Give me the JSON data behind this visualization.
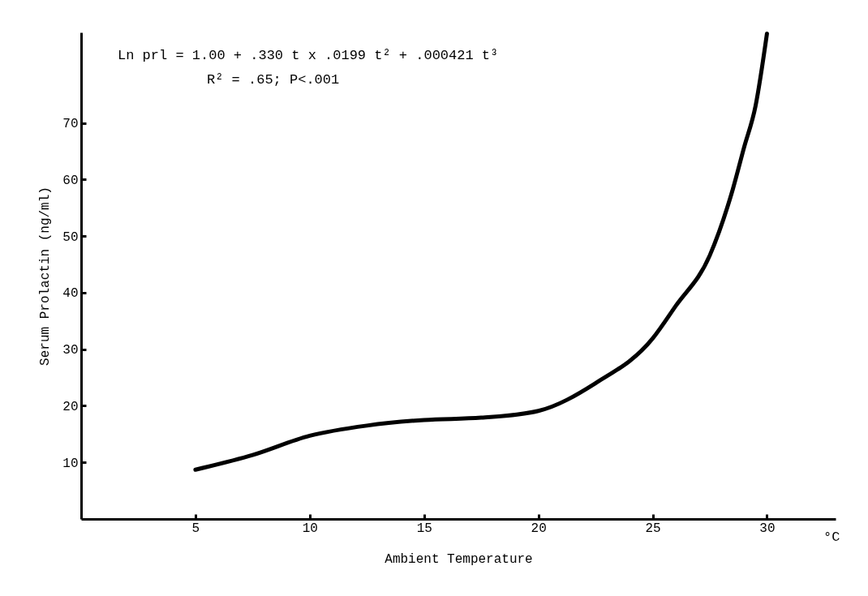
{
  "chart_data": {
    "type": "line",
    "xlabel": "Ambient Temperature",
    "ylabel": "Serum Prolactin (ng/ml)",
    "annotations": [
      "Ln prl = 1.00 + .330 t x .0199 t² + .000421 t³",
      "R² = .65; P<.001",
      "°C"
    ],
    "x": [
      5,
      7.5,
      10,
      12.5,
      15,
      17.5,
      20,
      22.5,
      25,
      26,
      27.5,
      28.5,
      29,
      29.5,
      30
    ],
    "series": [
      {
        "color": "#000000",
        "values": [
          8.7,
          11.3,
          14.7,
          16.5,
          17.5,
          17.9,
          19.1,
          24,
          31.9,
          37.6,
          46.6,
          58.2,
          65.7,
          73,
          85.8
        ]
      }
    ],
    "xlim": [
      0,
      33
    ],
    "ylim": [
      0,
      86
    ],
    "xticks": [
      5,
      10,
      15,
      20,
      25,
      30
    ],
    "yticks": [
      10,
      20,
      30,
      40,
      50,
      60,
      70
    ],
    "grid": false,
    "line_style": "solid"
  }
}
